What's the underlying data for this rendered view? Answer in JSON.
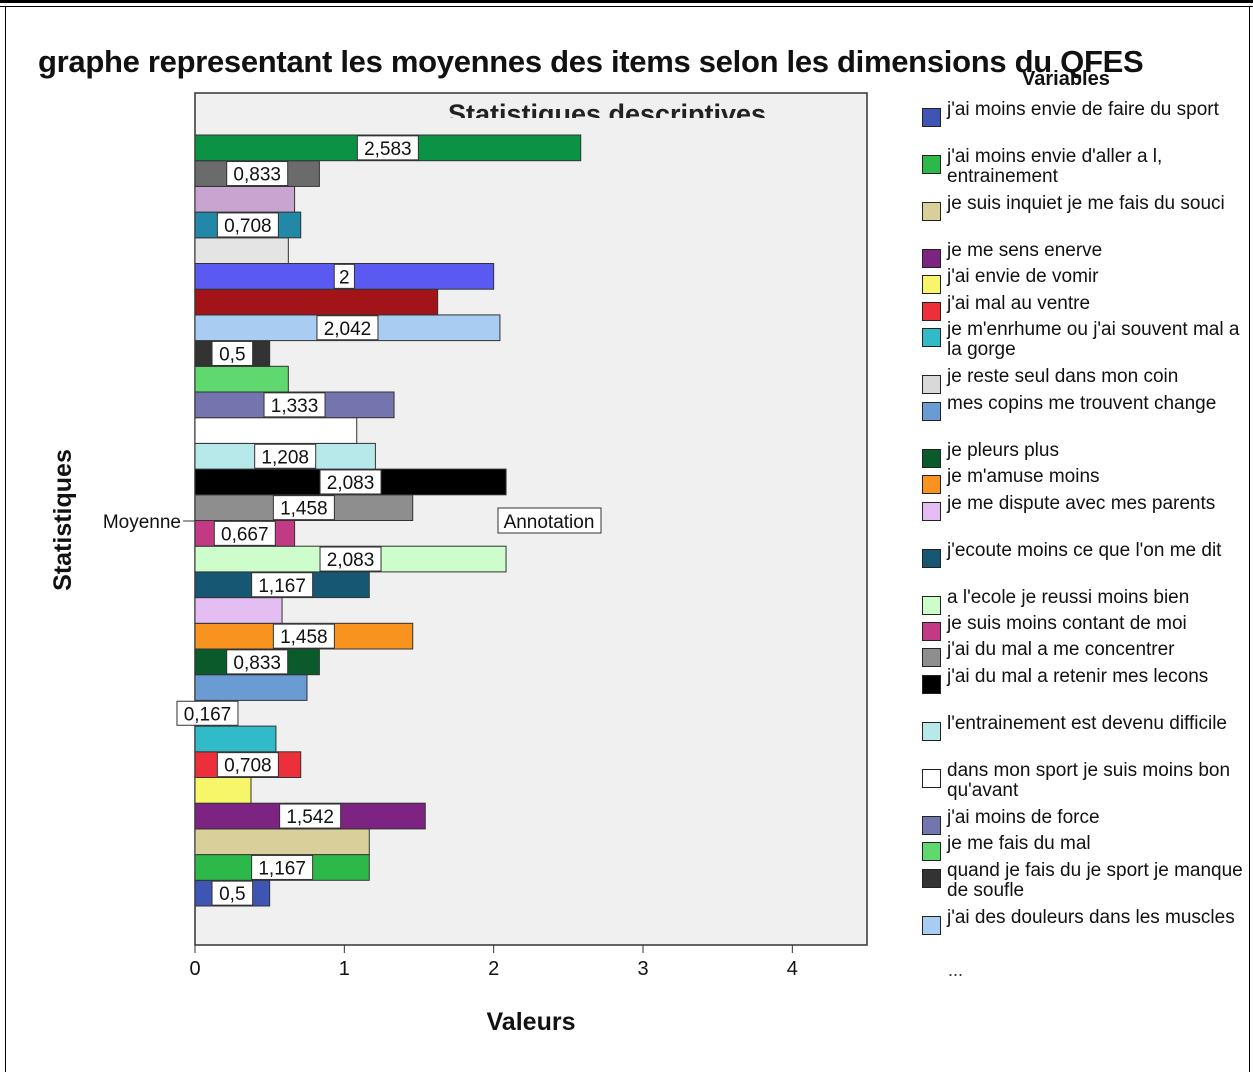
{
  "page_title": "graphe representant les moyennes des items selon les dimensions du QFES",
  "legend_more": "...",
  "chart_data": {
    "type": "bar",
    "orientation": "horizontal",
    "title": "Statistiques descriptives",
    "xlabel": "Valeurs",
    "ylabel": "Statistiques",
    "category": "Moyenne",
    "xlim": [
      0,
      4.5
    ],
    "x_ticks": [
      "0",
      "1",
      "2",
      "3",
      "4"
    ],
    "grid": false,
    "legend_title": "Variables",
    "legend_position": "right",
    "annotation": "Annotation",
    "series": [
      {
        "name": "j'ai moins envie de faire du sport",
        "value": 0.5,
        "label": "0,5",
        "color": "#3F55B5"
      },
      {
        "name": "j'ai moins envie d'aller a l, entrainement",
        "value": 1.167,
        "label": "1,167",
        "color": "#2DB84A"
      },
      {
        "name": "je suis inquiet je me fais du souci",
        "value": 1.167,
        "label": "",
        "color": "#D8CF9B"
      },
      {
        "name": "je me sens enerve",
        "value": 1.542,
        "label": "1,542",
        "color": "#7D2381"
      },
      {
        "name": "j'ai envie de vomir",
        "value": 0.375,
        "label": "",
        "color": "#F7F56A"
      },
      {
        "name": "j'ai mal au ventre",
        "value": 0.708,
        "label": "0,708",
        "color": "#EC2F3A"
      },
      {
        "name": "je m'enrhume ou j'ai souvent mal a la gorge",
        "value": 0.542,
        "label": "",
        "color": "#31BBC9"
      },
      {
        "name": "je reste seul dans mon coin",
        "value": 0.167,
        "label": "0,167",
        "color": "#D9D9D9"
      },
      {
        "name": "mes copins me trouvent change",
        "value": 0.75,
        "label": "",
        "color": "#6B9BD3"
      },
      {
        "name": "je pleurs plus",
        "value": 0.833,
        "label": "0,833",
        "color": "#0B5A2C"
      },
      {
        "name": "je m'amuse moins",
        "value": 1.458,
        "label": "1,458",
        "color": "#F7931E"
      },
      {
        "name": "je me dispute avec mes parents",
        "value": 0.583,
        "label": "",
        "color": "#E4BDF2"
      },
      {
        "name": "j'ecoute moins ce que l'on me dit",
        "value": 1.167,
        "label": "1,167",
        "color": "#165873"
      },
      {
        "name": "a l'ecole je reussi moins bien",
        "value": 2.083,
        "label": "2,083",
        "color": "#CCFDCB"
      },
      {
        "name": "je suis moins contant de moi",
        "value": 0.667,
        "label": "0,667",
        "color": "#C33A84"
      },
      {
        "name": "j'ai du mal a me concentrer",
        "value": 1.458,
        "label": "1,458",
        "color": "#8E8E8E"
      },
      {
        "name": "j'ai du mal a retenir mes lecons",
        "value": 2.083,
        "label": "2,083",
        "color": "#000000"
      },
      {
        "name": "l'entrainement est devenu difficile",
        "value": 1.208,
        "label": "1,208",
        "color": "#B8E9EA"
      },
      {
        "name": "dans mon sport je suis moins bon qu'avant",
        "value": 1.083,
        "label": "",
        "color": "#FFFFFF"
      },
      {
        "name": "j'ai moins de force",
        "value": 1.333,
        "label": "1,333",
        "color": "#7474AE"
      },
      {
        "name": "je me fais du mal",
        "value": 0.625,
        "label": "",
        "color": "#60D870"
      },
      {
        "name": "quand je fais du je sport je manque de soufle",
        "value": 0.5,
        "label": "0,5",
        "color": "#333333"
      },
      {
        "name": "j'ai des douleurs dans les muscles",
        "value": 2.042,
        "label": "2,042",
        "color": "#A9CDF2"
      },
      {
        "name": "",
        "value": 1.625,
        "label": "",
        "color": "#A31419"
      },
      {
        "name": "",
        "value": 2.0,
        "label": "2",
        "color": "#5A5AF2"
      },
      {
        "name": "",
        "value": 0.625,
        "label": "",
        "color": "#E4E4E4"
      },
      {
        "name": "",
        "value": 0.708,
        "label": "0,708",
        "color": "#2288A8"
      },
      {
        "name": "",
        "value": 0.667,
        "label": "",
        "color": "#C8A5D0"
      },
      {
        "name": "",
        "value": 0.833,
        "label": "0,833",
        "color": "#6B6B6B"
      },
      {
        "name": "",
        "value": 2.583,
        "label": "2,583",
        "color": "#0C9245"
      }
    ]
  }
}
